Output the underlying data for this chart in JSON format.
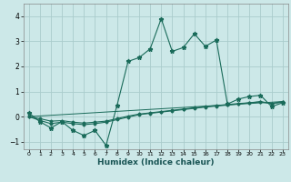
{
  "title": "",
  "xlabel": "Humidex (Indice chaleur)",
  "ylabel": "",
  "xlim": [
    -0.5,
    23.5
  ],
  "ylim": [
    -1.3,
    4.5
  ],
  "xticks": [
    0,
    1,
    2,
    3,
    4,
    5,
    6,
    7,
    8,
    9,
    10,
    11,
    12,
    13,
    14,
    15,
    16,
    17,
    18,
    19,
    20,
    21,
    22,
    23
  ],
  "yticks": [
    -1,
    0,
    1,
    2,
    3,
    4
  ],
  "background_color": "#cce8e8",
  "grid_color": "#aacccc",
  "line_color": "#1a6b5a",
  "line1_x": [
    0,
    1,
    2,
    3,
    4,
    5,
    6,
    7,
    8,
    9,
    10,
    11,
    12,
    13,
    14,
    15,
    16,
    17,
    18,
    19,
    20,
    21,
    22,
    23
  ],
  "line1_y": [
    0.15,
    -0.2,
    -0.45,
    -0.2,
    -0.55,
    -0.75,
    -0.55,
    -1.15,
    0.45,
    2.2,
    2.35,
    2.7,
    3.9,
    2.6,
    2.75,
    3.3,
    2.8,
    3.05,
    0.5,
    0.7,
    0.8,
    0.85,
    0.4,
    0.55
  ],
  "line2_x": [
    0,
    1,
    2,
    3,
    4,
    5,
    6,
    7,
    8,
    9,
    10,
    11,
    12,
    13,
    14,
    15,
    16,
    17,
    18,
    19,
    20,
    21,
    22,
    23
  ],
  "line2_y": [
    0.0,
    -0.15,
    -0.28,
    -0.22,
    -0.28,
    -0.32,
    -0.28,
    -0.22,
    -0.12,
    -0.02,
    0.08,
    0.13,
    0.18,
    0.23,
    0.28,
    0.33,
    0.38,
    0.42,
    0.46,
    0.5,
    0.55,
    0.6,
    0.52,
    0.6
  ],
  "line3_x": [
    0,
    1,
    2,
    3,
    4,
    5,
    6,
    7,
    8,
    9,
    10,
    11,
    12,
    13,
    14,
    15,
    16,
    17,
    18,
    19,
    20,
    21,
    22,
    23
  ],
  "line3_y": [
    0.0,
    -0.08,
    -0.18,
    -0.16,
    -0.22,
    -0.26,
    -0.22,
    -0.18,
    -0.08,
    0.02,
    0.1,
    0.15,
    0.2,
    0.25,
    0.3,
    0.35,
    0.4,
    0.44,
    0.48,
    0.52,
    0.55,
    0.58,
    0.52,
    0.57
  ],
  "line4_x": [
    0,
    23
  ],
  "line4_y": [
    0.0,
    0.6
  ]
}
